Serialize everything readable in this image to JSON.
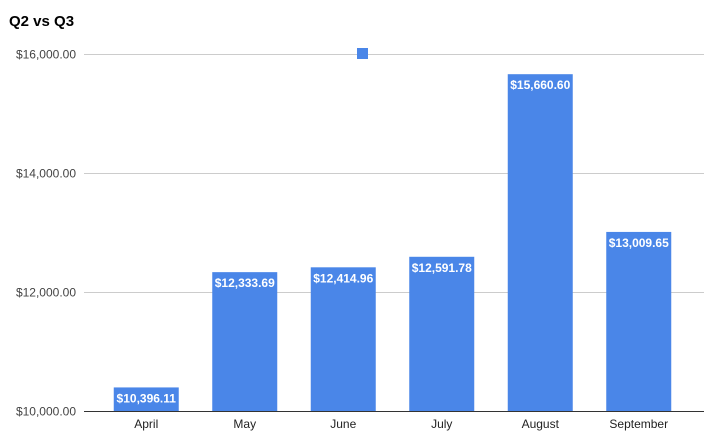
{
  "chart_data": {
    "type": "bar",
    "title": "Q2 vs Q3",
    "xlabel": "",
    "ylabel": "",
    "categories": [
      "April",
      "May",
      "June",
      "July",
      "August",
      "September"
    ],
    "values": [
      10396.11,
      12333.69,
      12414.96,
      12591.78,
      15660.6,
      13009.65
    ],
    "value_labels": [
      "$10,396.11",
      "$12,333.69",
      "$12,414.96",
      "$12,591.78",
      "$15,660.60",
      "$13,009.65"
    ],
    "y_ticks": [
      10000,
      12000,
      14000,
      16000
    ],
    "y_tick_labels": [
      "$10,000.00",
      "$12,000.00",
      "$14,000.00",
      "$16,000.00"
    ],
    "ylim": [
      10000,
      16000
    ],
    "grid": true,
    "legend": {
      "position": "top",
      "marker_only": true
    },
    "colors": {
      "bar": "#4a86e8",
      "grid": "#cccccc",
      "axis": "#333333"
    }
  }
}
